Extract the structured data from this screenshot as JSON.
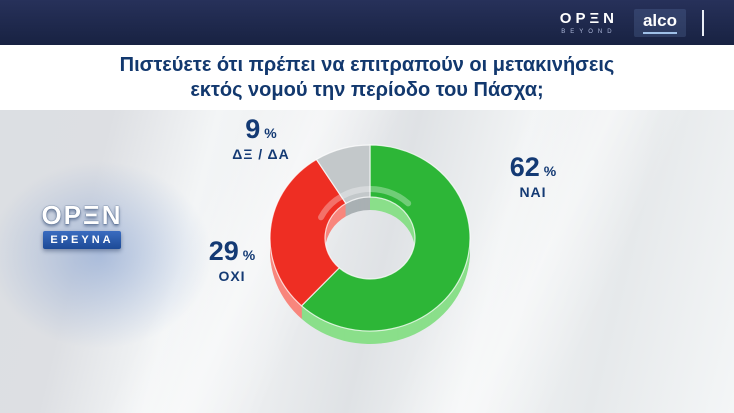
{
  "topbar": {
    "open_logo": "OPΞN",
    "open_logo_sub": "BEYOND",
    "alco_logo": "alco"
  },
  "title": {
    "line1": "Πιστεύετε ότι πρέπει να επιτραπούν οι μετακινήσεις",
    "line2": "εκτός νομού την περίοδο του Πάσχα;"
  },
  "badge": {
    "logo": "OPΞN",
    "label": "ΕΡΕΥΝΑ"
  },
  "chart_data": {
    "type": "pie",
    "donut": true,
    "title": "Πιστεύετε ότι πρέπει να επιτραπούν οι μετακινήσεις εκτός νομού την περίοδο του Πάσχα;",
    "categories": [
      "ΝΑΙ",
      "ΟΧΙ",
      "ΔΞ / ΔΑ"
    ],
    "values": [
      62,
      29,
      9
    ],
    "unit": "%",
    "colors": [
      "#2db637",
      "#ee2e23",
      "#c3c8ca"
    ],
    "rim_colors": [
      "#8adf8a",
      "#f8867d",
      "#a9b0b3"
    ],
    "start_angle_deg": 0,
    "label_color": "#143a74",
    "legend_position": "around"
  }
}
